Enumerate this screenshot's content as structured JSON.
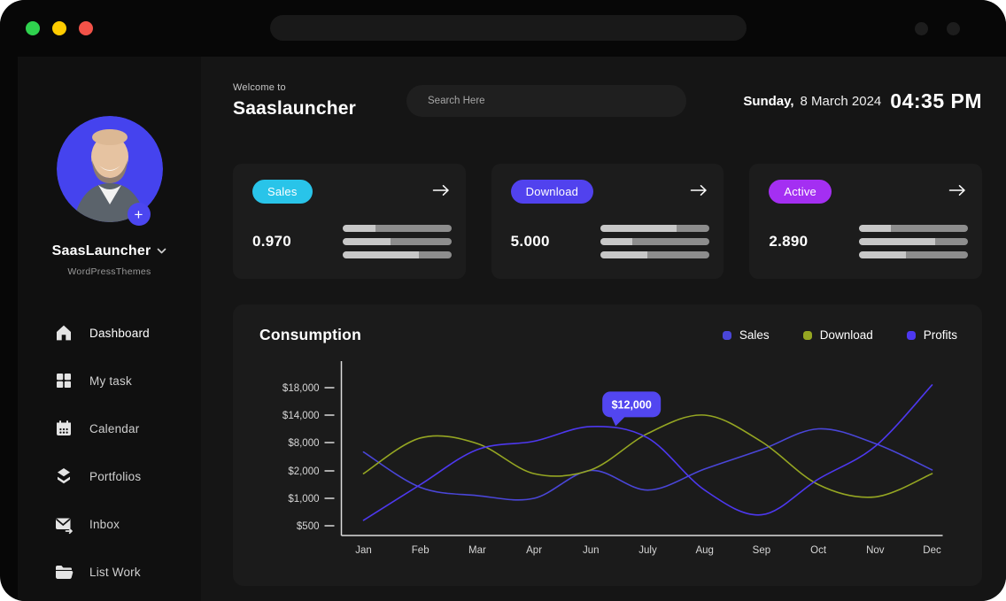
{
  "titlebar": {
    "traffic_lights": [
      {
        "name": "green",
        "color": "#2fd14e"
      },
      {
        "name": "yellow",
        "color": "#ffcc00"
      },
      {
        "name": "red",
        "color": "#f25248"
      }
    ]
  },
  "sidebar": {
    "profile": {
      "name": "SaasLauncher",
      "org": "WordPressThemes",
      "add_label": "+"
    },
    "items": [
      {
        "label": "Dashboard",
        "icon": "home",
        "active": true
      },
      {
        "label": "My task",
        "icon": "grid",
        "active": false
      },
      {
        "label": "Calendar",
        "icon": "calendar",
        "active": false
      },
      {
        "label": "Portfolios",
        "icon": "layers",
        "active": false
      },
      {
        "label": "Inbox",
        "icon": "inbox",
        "active": false
      },
      {
        "label": "List Work",
        "icon": "folder",
        "active": false
      }
    ]
  },
  "header": {
    "welcome": "Welcome to",
    "app_name": "Saaslauncher",
    "search_placeholder": "Search Here",
    "date_day": "Sunday,",
    "date_rest": "8 March 2024",
    "time": "04:35 PM"
  },
  "stats": [
    {
      "label": "Sales",
      "badge_color": "#29c4e9",
      "value": "0.970",
      "bar_fill_pct": [
        30,
        44,
        70
      ]
    },
    {
      "label": "Download",
      "badge_color": "#5142ee",
      "value": "5.000",
      "bar_fill_pct": [
        70,
        29,
        43
      ]
    },
    {
      "label": "Active",
      "badge_color": "#a42ff2",
      "value": "2.890",
      "bar_fill_pct": [
        29,
        70,
        43
      ]
    }
  ],
  "chart_data": {
    "type": "line",
    "title": "Consumption",
    "xlabel": "",
    "ylabel": "",
    "grid": false,
    "legend_position": "top-right",
    "categories": [
      "Jan",
      "Feb",
      "Mar",
      "Apr",
      "Jun",
      "July",
      "Aug",
      "Sep",
      "Oct",
      "Nov",
      "Dec"
    ],
    "y_ticks": {
      "labels": [
        "$500",
        "$1,000",
        "$2,000",
        "$8,000",
        "$14,000",
        "$18,000"
      ],
      "values": [
        500,
        1000,
        2000,
        8000,
        14000,
        18000
      ]
    },
    "series": [
      {
        "name": "Sales",
        "color": "#4a46d8",
        "values": [
          6000,
          1400,
          1100,
          1000,
          2100,
          1300,
          2400,
          6500,
          11000,
          7800,
          2200
        ]
      },
      {
        "name": "Download",
        "color": "#95a622",
        "values": [
          1900,
          9000,
          7800,
          1900,
          2200,
          10000,
          14000,
          8200,
          1500,
          1050,
          1900
        ]
      },
      {
        "name": "Profits",
        "color": "#4d38ef",
        "values": [
          600,
          1500,
          6500,
          8300,
          11500,
          9000,
          1300,
          700,
          1700,
          7200,
          18400
        ]
      }
    ],
    "tooltip": {
      "label": "$12,000",
      "color": "#5246f0",
      "anchor_series": "Profits",
      "anchor_index": 4.45,
      "anchor_value": 11800
    }
  }
}
